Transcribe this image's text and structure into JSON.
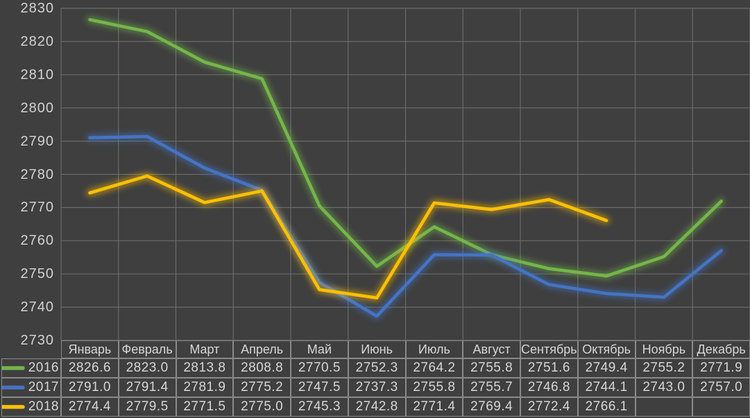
{
  "page": {
    "background": "#3f3f3f"
  },
  "grid": {
    "color": "#6a6a6a"
  },
  "axis": {
    "text_color": "#d2d2d2"
  },
  "table": {
    "border_color": "#8a8a8a",
    "text_color": "#d6d6d6"
  },
  "chart_data": {
    "type": "line",
    "title": "",
    "xlabel": "",
    "ylabel": "",
    "categories": [
      "Январь",
      "Февраль",
      "Март",
      "Апрель",
      "Май",
      "Июнь",
      "Июль",
      "Август",
      "Сентябрь",
      "Октябрь",
      "Ноябрь",
      "Декабрь"
    ],
    "series": [
      {
        "name": "2016",
        "color": "#74B64A",
        "values": [
          2826.6,
          2823.0,
          2813.8,
          2808.8,
          2770.5,
          2752.3,
          2764.2,
          2755.8,
          2751.6,
          2749.4,
          2755.2,
          2771.9
        ]
      },
      {
        "name": "2017",
        "color": "#4574C4",
        "values": [
          2791.0,
          2791.4,
          2781.9,
          2775.2,
          2747.5,
          2737.3,
          2755.8,
          2755.7,
          2746.8,
          2744.1,
          2743.0,
          2757.0
        ]
      },
      {
        "name": "2018",
        "color": "#FFC000",
        "values": [
          2774.4,
          2779.5,
          2771.5,
          2775.0,
          2745.3,
          2742.8,
          2771.4,
          2769.4,
          2772.4,
          2766.1,
          null,
          null
        ]
      }
    ],
    "ylim": [
      2730,
      2830
    ],
    "ytick_step": 10,
    "grid": true,
    "legend_position": "table-left",
    "line_glow": true,
    "data_table_shown": true
  }
}
